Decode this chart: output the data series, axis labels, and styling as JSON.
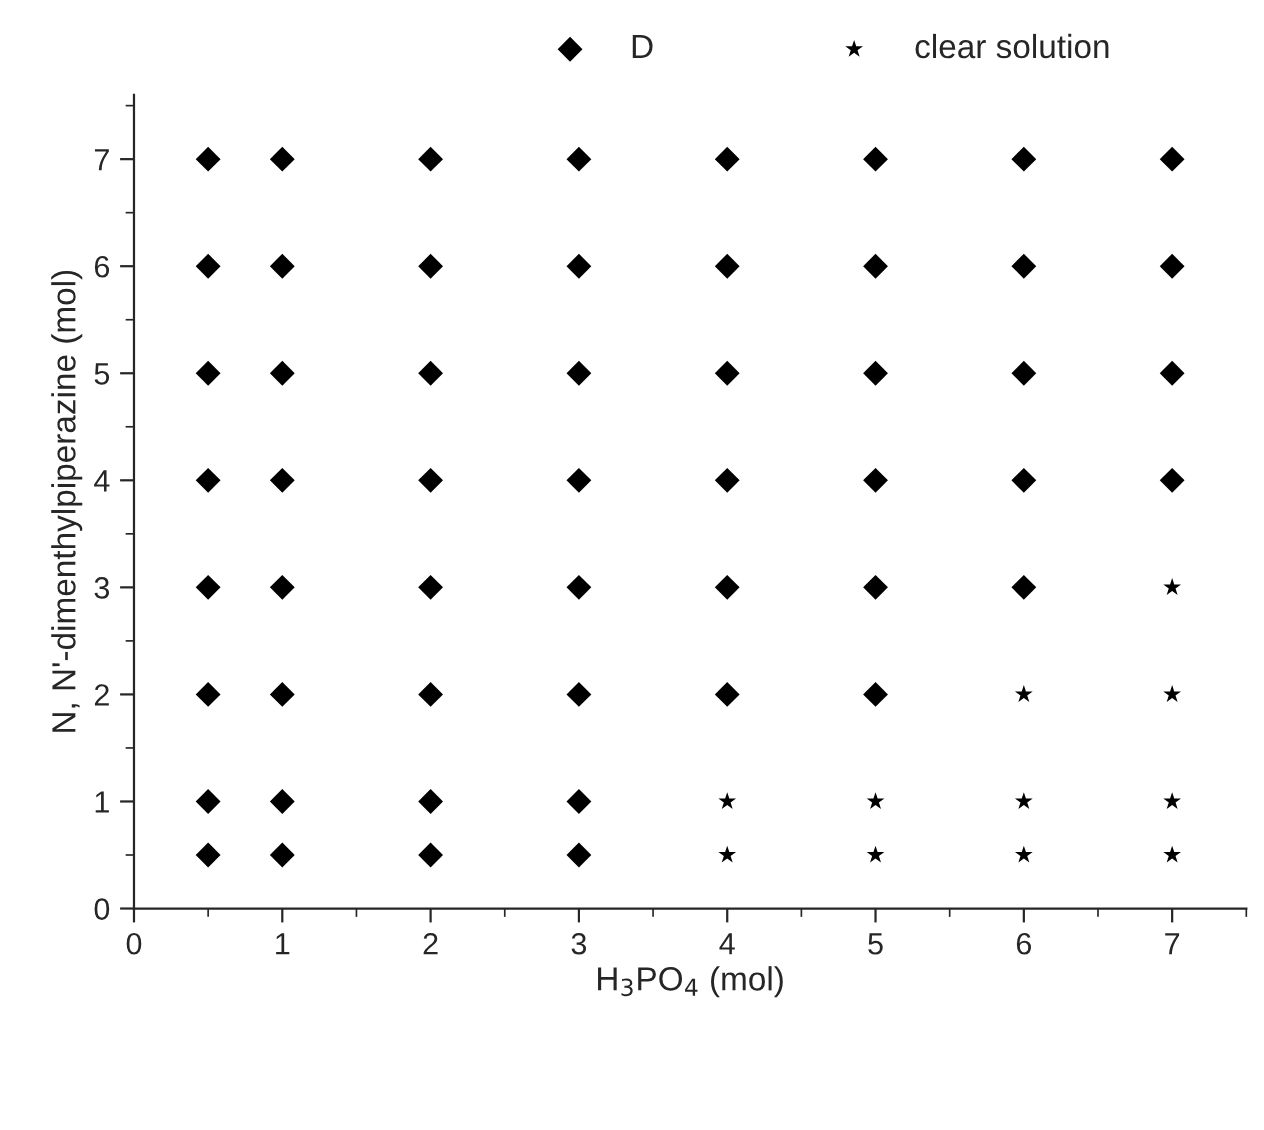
{
  "chart_data": {
    "type": "scatter",
    "xlabel": "H$_{3}$PO$_{4}$ (mol)",
    "ylabel": "N, N'-dimenthylpiperazine (mol)",
    "xlim": [
      0,
      7.5
    ],
    "ylim": [
      0,
      7.6
    ],
    "xticks": [
      0,
      1,
      2,
      3,
      4,
      5,
      6,
      7
    ],
    "yticks": [
      0,
      1,
      2,
      3,
      4,
      5,
      6,
      7
    ],
    "grid": false,
    "legend": "top",
    "series": [
      {
        "name": "D",
        "color": "#000000",
        "marker": "diamond",
        "x": [
          0.5,
          1,
          2,
          3,
          0.5,
          1,
          2,
          3,
          0.5,
          1,
          2,
          3,
          4,
          5,
          0.5,
          1,
          2,
          3,
          4,
          5,
          6,
          0.5,
          1,
          2,
          3,
          4,
          5,
          6,
          7,
          0.5,
          1,
          2,
          3,
          4,
          5,
          6,
          7,
          0.5,
          1,
          2,
          3,
          4,
          5,
          6,
          7,
          0.5,
          1,
          2,
          3,
          4,
          5,
          6,
          7
        ],
        "values": [
          0.5,
          0.5,
          0.5,
          0.5,
          1,
          1,
          1,
          1,
          2,
          2,
          2,
          2,
          2,
          2,
          3,
          3,
          3,
          3,
          3,
          3,
          3,
          4,
          4,
          4,
          4,
          4,
          4,
          4,
          4,
          5,
          5,
          5,
          5,
          5,
          5,
          5,
          5,
          6,
          6,
          6,
          6,
          6,
          6,
          6,
          6,
          7,
          7,
          7,
          7,
          7,
          7,
          7,
          7
        ]
      },
      {
        "name": "clear solution",
        "color": "#000000",
        "marker": "star",
        "x": [
          4,
          5,
          6,
          7,
          4,
          5,
          6,
          7,
          6,
          7,
          7
        ],
        "values": [
          0.5,
          0.5,
          0.5,
          0.5,
          1,
          1,
          1,
          1,
          2,
          2,
          3
        ]
      }
    ]
  }
}
